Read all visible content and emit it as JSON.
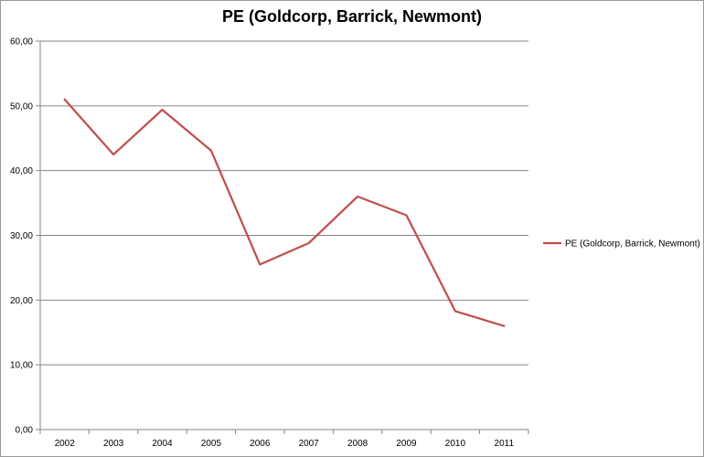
{
  "chart_data": {
    "type": "line",
    "title": "PE (Goldcorp, Barrick, Newmont)",
    "xlabel": "",
    "ylabel": "",
    "categories": [
      "2002",
      "2003",
      "2004",
      "2005",
      "2006",
      "2007",
      "2008",
      "2009",
      "2010",
      "2011"
    ],
    "series": [
      {
        "name": "PE (Goldcorp, Barrick, Newmont)",
        "values": [
          51.0,
          42.5,
          49.4,
          43.1,
          25.5,
          28.8,
          36.0,
          33.1,
          18.3,
          16.0
        ],
        "color": "#c0504d"
      }
    ],
    "ylim": [
      0,
      60
    ],
    "yticks": [
      "0,00",
      "10,00",
      "20,00",
      "30,00",
      "40,00",
      "50,00",
      "60,00"
    ],
    "grid": true,
    "legend": "right"
  }
}
